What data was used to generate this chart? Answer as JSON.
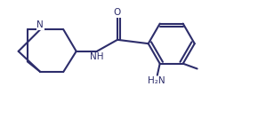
{
  "background_color": "#ffffff",
  "line_color": "#2d2d6b",
  "text_color": "#2d2d6b",
  "line_width": 1.5,
  "fig_width": 2.9,
  "fig_height": 1.33,
  "dpi": 100,
  "xlim": [
    0,
    10
  ],
  "ylim": [
    0,
    4.6
  ]
}
